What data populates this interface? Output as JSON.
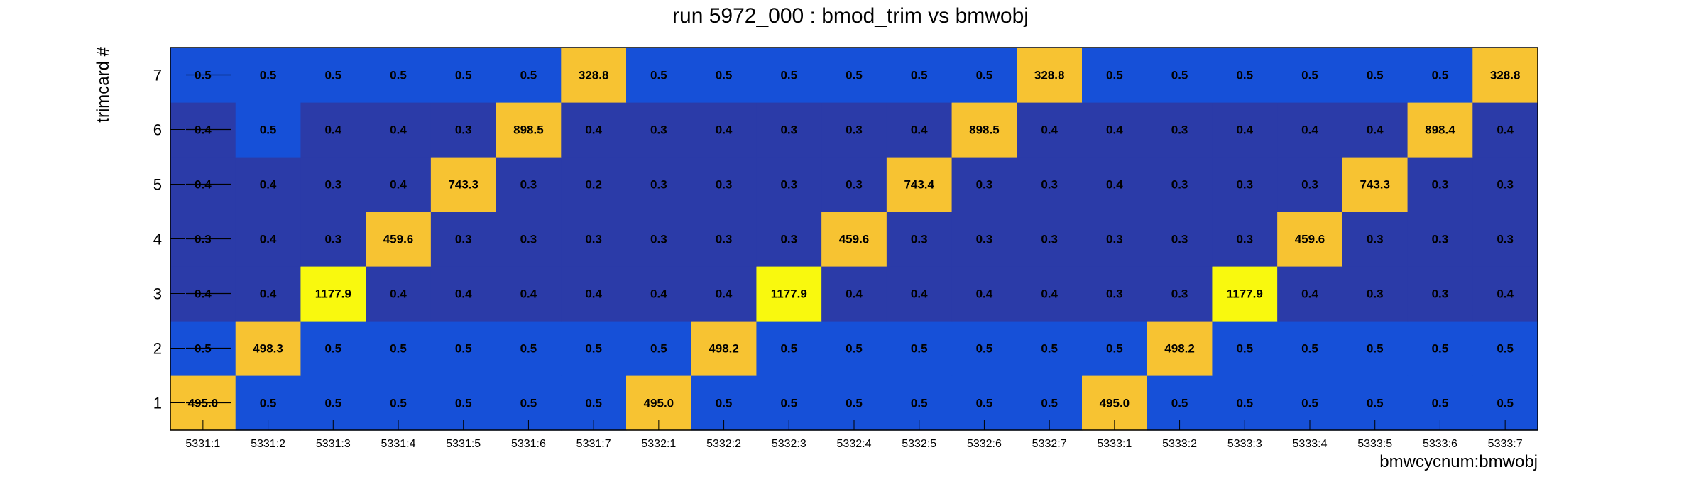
{
  "chart_data": {
    "type": "heatmap",
    "title": "run 5972_000 : bmod_trim vs bmwobj",
    "xlabel": "bmwcycnum:bmwobj",
    "ylabel": "trimcard #",
    "x_categories": [
      "5331:1",
      "5331:2",
      "5331:3",
      "5331:4",
      "5331:5",
      "5331:6",
      "5331:7",
      "5332:1",
      "5332:2",
      "5332:3",
      "5332:4",
      "5332:5",
      "5332:6",
      "5332:7",
      "5333:1",
      "5333:2",
      "5333:3",
      "5333:4",
      "5333:5",
      "5333:6",
      "5333:7"
    ],
    "y_categories": [
      "1",
      "2",
      "3",
      "4",
      "5",
      "6",
      "7"
    ],
    "values": [
      [
        "495.0",
        "0.5",
        "0.5",
        "0.5",
        "0.5",
        "0.5",
        "0.5",
        "495.0",
        "0.5",
        "0.5",
        "0.5",
        "0.5",
        "0.5",
        "0.5",
        "495.0",
        "0.5",
        "0.5",
        "0.5",
        "0.5",
        "0.5",
        "0.5"
      ],
      [
        "0.5",
        "498.3",
        "0.5",
        "0.5",
        "0.5",
        "0.5",
        "0.5",
        "0.5",
        "498.2",
        "0.5",
        "0.5",
        "0.5",
        "0.5",
        "0.5",
        "0.5",
        "498.2",
        "0.5",
        "0.5",
        "0.5",
        "0.5",
        "0.5"
      ],
      [
        "0.4",
        "0.4",
        "1177.9",
        "0.4",
        "0.4",
        "0.4",
        "0.4",
        "0.4",
        "0.4",
        "1177.9",
        "0.4",
        "0.4",
        "0.4",
        "0.4",
        "0.3",
        "0.3",
        "1177.9",
        "0.4",
        "0.3",
        "0.3",
        "0.4"
      ],
      [
        "0.3",
        "0.4",
        "0.3",
        "459.6",
        "0.3",
        "0.3",
        "0.3",
        "0.3",
        "0.3",
        "0.3",
        "459.6",
        "0.3",
        "0.3",
        "0.3",
        "0.3",
        "0.3",
        "0.3",
        "459.6",
        "0.3",
        "0.3",
        "0.3"
      ],
      [
        "0.4",
        "0.4",
        "0.3",
        "0.4",
        "743.3",
        "0.3",
        "0.2",
        "0.3",
        "0.3",
        "0.3",
        "0.3",
        "743.4",
        "0.3",
        "0.3",
        "0.4",
        "0.3",
        "0.3",
        "0.3",
        "743.3",
        "0.3",
        "0.3"
      ],
      [
        "0.4",
        "0.5",
        "0.4",
        "0.4",
        "0.3",
        "898.5",
        "0.4",
        "0.3",
        "0.4",
        "0.3",
        "0.3",
        "0.4",
        "898.5",
        "0.4",
        "0.4",
        "0.3",
        "0.4",
        "0.4",
        "0.4",
        "898.4",
        "0.4"
      ],
      [
        "0.5",
        "0.5",
        "0.5",
        "0.5",
        "0.5",
        "0.5",
        "328.8",
        "0.5",
        "0.5",
        "0.5",
        "0.5",
        "0.5",
        "0.5",
        "328.8",
        "0.5",
        "0.5",
        "0.5",
        "0.5",
        "0.5",
        "0.5",
        "328.8"
      ]
    ],
    "color_scale": {
      "low": "#2b3ba8",
      "mid": "#1650d8",
      "high_mid": "#f7c332",
      "high": "#f9f90e"
    }
  }
}
